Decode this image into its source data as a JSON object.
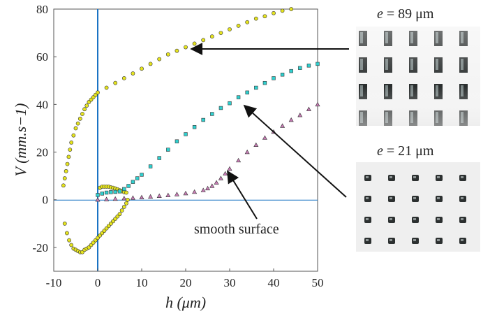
{
  "chart_data": {
    "type": "scatter",
    "title": "",
    "xlabel": "h (μm)",
    "ylabel": "V (mm.s−1)",
    "xlim": [
      -10,
      50
    ],
    "ylim": [
      -30,
      80
    ],
    "xticks": [
      "-10",
      "0",
      "10",
      "20",
      "30",
      "40",
      "50"
    ],
    "yticks": [
      "-20",
      "0",
      "20",
      "40",
      "60",
      "80"
    ],
    "grid": false,
    "reference_lines": {
      "vertical_x": 0,
      "horizontal_y": 0
    },
    "series": [
      {
        "id": "e89",
        "color": "#e6e41e",
        "marker": "circle",
        "points": [
          [
            -7.8,
            6
          ],
          [
            -7.5,
            9
          ],
          [
            -7.2,
            12
          ],
          [
            -6.9,
            15
          ],
          [
            -6.6,
            18
          ],
          [
            -6.3,
            21
          ],
          [
            -6.0,
            24
          ],
          [
            -5.5,
            27
          ],
          [
            -5.0,
            30
          ],
          [
            -4.5,
            32
          ],
          [
            -4.0,
            34
          ],
          [
            -3.5,
            36
          ],
          [
            -3.0,
            38
          ],
          [
            -2.5,
            39.5
          ],
          [
            -2.0,
            41
          ],
          [
            -1.5,
            42
          ],
          [
            -1.0,
            43
          ],
          [
            -0.5,
            44
          ],
          [
            0,
            45
          ],
          [
            2,
            47
          ],
          [
            4,
            49
          ],
          [
            6,
            51
          ],
          [
            8,
            53
          ],
          [
            10,
            55
          ],
          [
            12,
            57
          ],
          [
            14,
            59
          ],
          [
            16,
            61
          ],
          [
            18,
            62.5
          ],
          [
            20,
            64
          ],
          [
            22,
            65.5
          ],
          [
            24,
            67
          ],
          [
            26,
            68.5
          ],
          [
            28,
            70
          ],
          [
            30,
            71.5
          ],
          [
            32,
            73
          ],
          [
            34,
            74.5
          ],
          [
            36,
            76
          ],
          [
            38,
            77
          ],
          [
            40,
            78.3
          ],
          [
            42,
            79.3
          ],
          [
            44,
            80
          ],
          [
            -7.5,
            -10
          ],
          [
            -7.0,
            -14
          ],
          [
            -6.5,
            -17
          ],
          [
            -6.0,
            -19
          ],
          [
            -5.5,
            -20.5
          ],
          [
            -5.0,
            -21
          ],
          [
            -4.5,
            -21.5
          ],
          [
            -4.0,
            -22
          ],
          [
            -3.5,
            -22
          ],
          [
            -3.0,
            -21
          ],
          [
            -2.5,
            -20.5
          ],
          [
            -2.0,
            -20
          ],
          [
            -1.5,
            -19
          ],
          [
            -1.0,
            -18
          ],
          [
            -0.5,
            -17
          ],
          [
            0,
            -16
          ],
          [
            0.5,
            -15
          ],
          [
            1.0,
            -14
          ],
          [
            1.5,
            -13
          ],
          [
            2.0,
            -12
          ],
          [
            2.5,
            -11
          ],
          [
            3.0,
            -10
          ],
          [
            3.5,
            -9
          ],
          [
            4.0,
            -8
          ],
          [
            4.5,
            -7
          ],
          [
            5.0,
            -6
          ],
          [
            5.5,
            -4.5
          ],
          [
            6.0,
            -3
          ],
          [
            6.5,
            -1.5
          ],
          [
            6.8,
            0
          ],
          [
            0.5,
            5
          ],
          [
            1.0,
            5.5
          ],
          [
            1.5,
            5.5
          ],
          [
            2.0,
            5.5
          ],
          [
            2.5,
            5.5
          ],
          [
            3.0,
            5.2
          ],
          [
            3.5,
            5.0
          ],
          [
            4.0,
            4.7
          ],
          [
            4.5,
            4.4
          ],
          [
            5.0,
            4.0
          ],
          [
            5.5,
            3.6
          ],
          [
            6.0,
            3.2
          ],
          [
            6.5,
            3.0
          ]
        ]
      },
      {
        "id": "e21",
        "color": "#2fd0cf",
        "marker": "square",
        "points": [
          [
            0,
            2
          ],
          [
            1,
            2.6
          ],
          [
            2,
            3.0
          ],
          [
            3,
            3.2
          ],
          [
            4,
            3.3
          ],
          [
            5,
            3.5
          ],
          [
            6,
            4.5
          ],
          [
            7,
            5.8
          ],
          [
            8,
            7.5
          ],
          [
            9,
            9
          ],
          [
            10,
            10.5
          ],
          [
            12,
            14
          ],
          [
            14,
            17.5
          ],
          [
            16,
            21
          ],
          [
            18,
            24.5
          ],
          [
            20,
            27.5
          ],
          [
            22,
            30.5
          ],
          [
            24,
            33.5
          ],
          [
            26,
            36
          ],
          [
            28,
            38.5
          ],
          [
            30,
            40.5
          ],
          [
            32,
            43
          ],
          [
            34,
            45
          ],
          [
            36,
            47
          ],
          [
            38,
            49
          ],
          [
            40,
            51
          ],
          [
            42,
            52.5
          ],
          [
            44,
            54
          ],
          [
            46,
            55.3
          ],
          [
            48,
            56.3
          ],
          [
            50,
            57
          ]
        ]
      },
      {
        "id": "smooth",
        "color": "#c77bb4",
        "marker": "triangle",
        "points": [
          [
            0,
            0
          ],
          [
            2,
            0.2
          ],
          [
            4,
            0.4
          ],
          [
            6,
            0.6
          ],
          [
            8,
            0.8
          ],
          [
            10,
            1.0
          ],
          [
            12,
            1.3
          ],
          [
            14,
            1.6
          ],
          [
            16,
            1.9
          ],
          [
            18,
            2.3
          ],
          [
            20,
            2.7
          ],
          [
            22,
            3.3
          ],
          [
            24,
            4.0
          ],
          [
            25,
            4.8
          ],
          [
            26,
            5.8
          ],
          [
            27,
            7.2
          ],
          [
            28,
            9
          ],
          [
            29,
            11
          ],
          [
            30,
            13
          ],
          [
            32,
            16.5
          ],
          [
            34,
            20
          ],
          [
            36,
            23
          ],
          [
            38,
            26
          ],
          [
            40,
            28.5
          ],
          [
            42,
            31
          ],
          [
            44,
            33.5
          ],
          [
            46,
            35.5
          ],
          [
            48,
            38
          ],
          [
            50,
            40
          ]
        ]
      }
    ],
    "annotations": [
      {
        "text": "smooth surface",
        "points_to": [
          30,
          11
        ]
      },
      {
        "text": "e = 89 μm",
        "points_to": [
          20,
          64
        ]
      },
      {
        "text": "e = 21 μm",
        "points_to": [
          32,
          40
        ]
      }
    ]
  },
  "photos": [
    {
      "label_var": "e",
      "label_rest": " = 89 μm",
      "kind": "tall pillars"
    },
    {
      "label_var": "e",
      "label_rest": " = 21 μm",
      "kind": "short pillars"
    }
  ],
  "annotation_text": {
    "smooth": "smooth surface"
  },
  "colors": {
    "axis": "#555555",
    "zero_line": "#1a73c4",
    "marker_edge": "#333333"
  }
}
